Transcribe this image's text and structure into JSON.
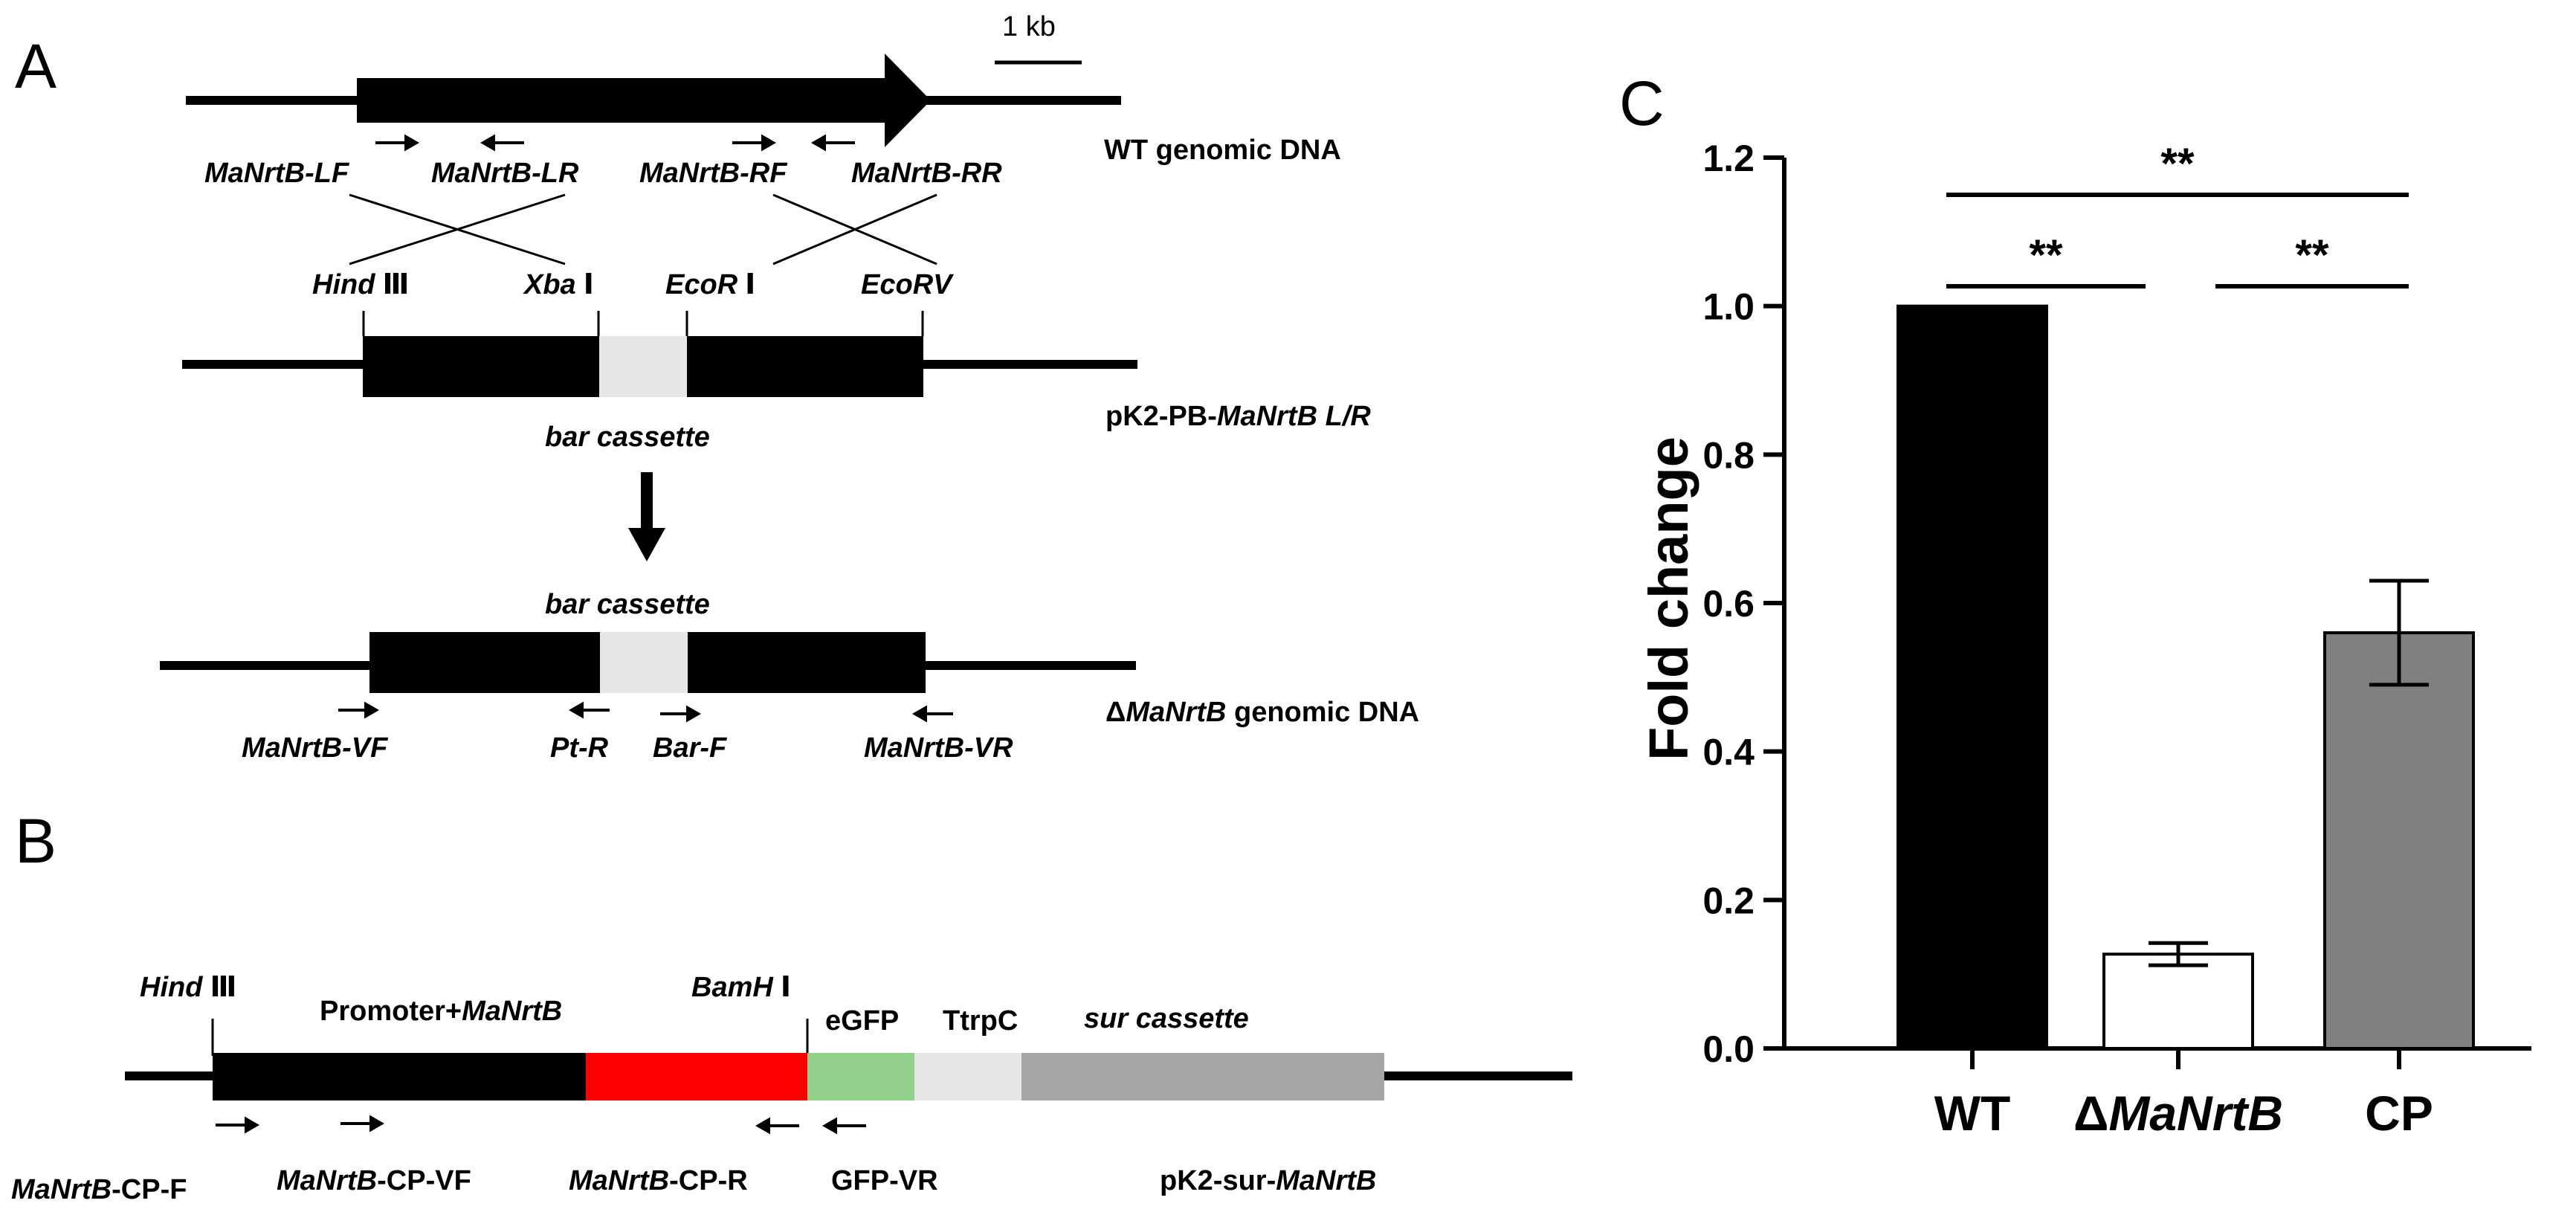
{
  "panels": {
    "a": "A",
    "b": "B",
    "c": "C"
  },
  "scale_bar": "1 kb",
  "panel_a": {
    "wt_label": "WT genomic DNA",
    "primers_top": {
      "lf": "MaNrtB-LF",
      "lr": "MaNrtB-LR",
      "rf": "MaNrtB-RF",
      "rr": "MaNrtB-RR"
    },
    "sites": {
      "hind": "Hind",
      "hind_num": "Ⅲ",
      "xba": "Xba",
      "xba_num": "Ⅰ",
      "ecor": "EcoR",
      "ecor_num": "Ⅰ",
      "ecorv": "EcoRV"
    },
    "plasmid_label_prefix": "pK2-PB-",
    "plasmid_label_italic": "MaNrtB L/R",
    "bar_cassette_1": "bar cassette",
    "bar_cassette_2": "bar cassette",
    "mutant_prefix": "Δ",
    "mutant_italic": "MaNrtB",
    "mutant_suffix": " genomic DNA",
    "primers_bottom": {
      "vf": "MaNrtB-VF",
      "ptr": "Pt-R",
      "barf": "Bar-F",
      "vr": "MaNrtB-VR"
    }
  },
  "panel_b": {
    "hind": "Hind",
    "hind_num": "Ⅲ",
    "bamh": "BamH",
    "bamh_num": "Ⅰ",
    "promoter_prefix": "Promoter+",
    "promoter_italic": "MaNrtB",
    "egfp": "eGFP",
    "ttrpc": "TtrpC",
    "sur": "sur cassette",
    "primers": {
      "cpf_italic": "MaNrtB",
      "cpf_suffix": "-CP-F",
      "cpvf_italic": "MaNrtB",
      "cpvf_suffix": "-CP-VF",
      "cpr_italic": "MaNrtB",
      "cpr_suffix": "-CP-R",
      "gfpvr": "GFP-VR"
    },
    "plasmid_prefix": "pK2-sur-",
    "plasmid_italic": "MaNrtB",
    "colors": {
      "promoter": "#000000",
      "gene": "#ff0000",
      "egfp": "#92d18b",
      "ttrpc": "#e6e6e6",
      "sur": "#a6a6a6"
    }
  },
  "chart_data": {
    "type": "bar",
    "ylabel": "Fold change",
    "ylim": [
      0,
      1.2
    ],
    "yticks": [
      "0.0",
      "0.2",
      "0.4",
      "0.6",
      "0.8",
      "1.0",
      "1.2"
    ],
    "categories": [
      "WT",
      "ΔMaNrtB",
      "CP"
    ],
    "category_parts": [
      {
        "prefix": "WT",
        "italic": ""
      },
      {
        "prefix": "Δ",
        "italic": "MaNrtB"
      },
      {
        "prefix": "CP",
        "italic": ""
      }
    ],
    "values": [
      1.0,
      0.127,
      0.56
    ],
    "errors": [
      0,
      0.015,
      0.07
    ],
    "colors": [
      "#000000",
      "#ffffff",
      "#808080"
    ],
    "significance": [
      {
        "from": 0,
        "to": 1,
        "label": "**"
      },
      {
        "from": 1,
        "to": 2,
        "label": "**"
      },
      {
        "from": 0,
        "to": 2,
        "label": "**"
      }
    ]
  }
}
